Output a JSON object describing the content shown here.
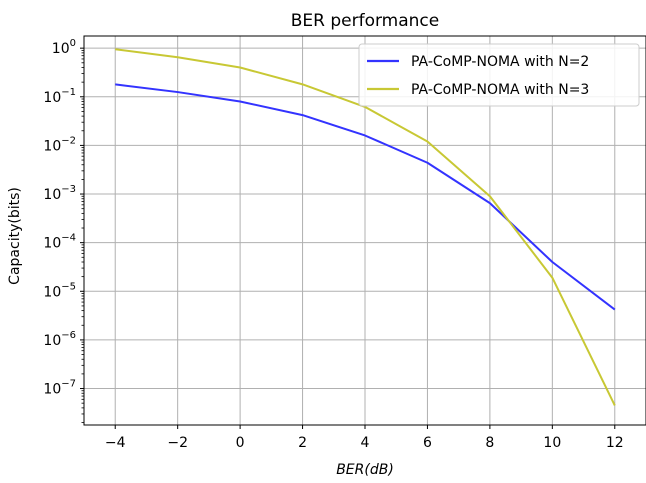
{
  "chart_data": {
    "type": "line",
    "title": "BER performance",
    "xlabel_main": "BER",
    "xlabel_unit": "dB",
    "ylabel": "Capacity(bits)",
    "x": [
      -4,
      -2,
      0,
      2,
      4,
      6,
      8,
      10,
      12
    ],
    "xlim": [
      -5,
      13
    ],
    "ylim_exponent": [
      -7.75,
      0.25
    ],
    "yscale": "log",
    "x_ticks": [
      -4,
      -2,
      0,
      2,
      4,
      6,
      8,
      10,
      12
    ],
    "y_tick_exponents": [
      0,
      -1,
      -2,
      -3,
      -4,
      -5,
      -6,
      -7
    ],
    "grid": true,
    "legend_position": "top-right",
    "series": [
      {
        "name": "PA-CoMP-NOMA with N=2",
        "color": "#3333ff",
        "values": [
          0.18,
          0.125,
          0.08,
          0.042,
          0.016,
          0.0044,
          0.00065,
          4e-05,
          4.2e-06
        ]
      },
      {
        "name": "PA-CoMP-NOMA with N=3",
        "color": "#c8c834",
        "values": [
          0.95,
          0.65,
          0.4,
          0.18,
          0.062,
          0.012,
          0.0009,
          1.9e-05,
          4.5e-08
        ]
      }
    ]
  }
}
